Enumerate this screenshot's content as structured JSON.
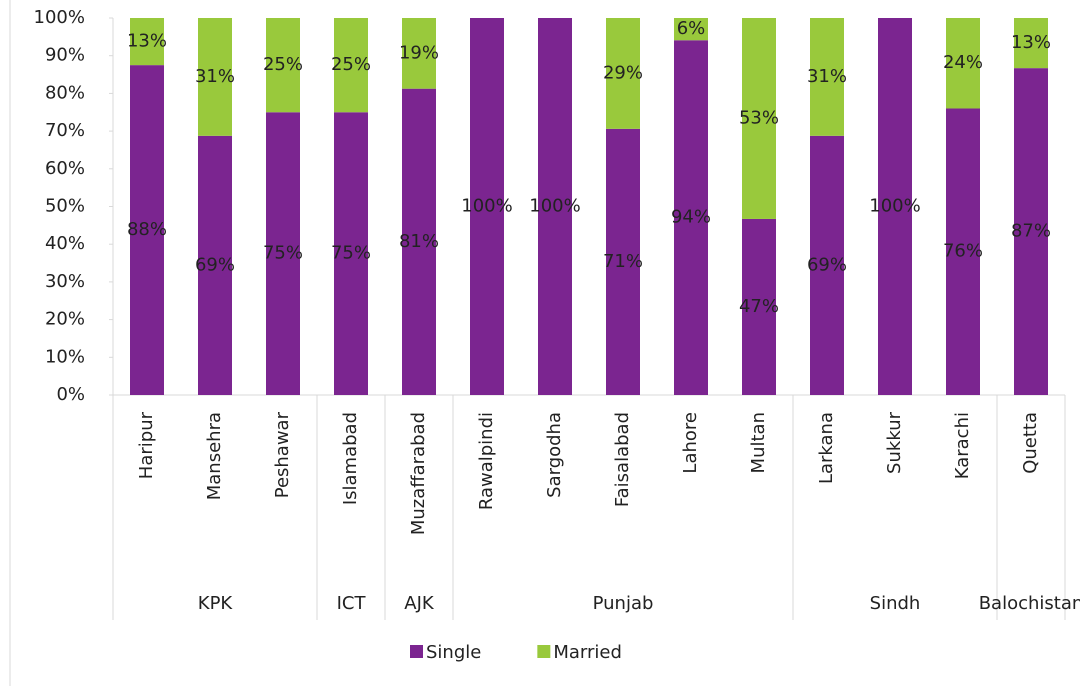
{
  "chart_data": {
    "type": "stacked_bar",
    "groups": [
      {
        "label": "KPK",
        "categories": [
          "Haripur",
          "Mansehra",
          "Peshawar"
        ]
      },
      {
        "label": "ICT",
        "categories": [
          "Islamabad"
        ]
      },
      {
        "label": "AJK",
        "categories": [
          "Muzaffarabad"
        ]
      },
      {
        "label": "Punjab",
        "categories": [
          "Rawalpindi",
          "Sargodha",
          "Faisalabad",
          "Lahore",
          "Multan"
        ]
      },
      {
        "label": "Sindh",
        "categories": [
          "Larkana",
          "Sukkur",
          "Karachi"
        ]
      },
      {
        "label": "Balochistan",
        "categories": [
          "Quetta"
        ]
      }
    ],
    "series": [
      {
        "name": "Single",
        "color": "#7b2590",
        "values": [
          87.5,
          68.75,
          75,
          75,
          81.25,
          100,
          100,
          70.6,
          94.1,
          46.7,
          68.75,
          100,
          76,
          86.7
        ],
        "value_labels": [
          "88%",
          "69%",
          "75%",
          "75%",
          "81%",
          "100%",
          "100%",
          "71%",
          "94%",
          "47%",
          "69%",
          "100%",
          "76%",
          "87%"
        ]
      },
      {
        "name": "Married",
        "color": "#99c93c",
        "values": [
          12.5,
          31.25,
          25,
          25,
          18.75,
          0,
          0,
          29.4,
          5.9,
          53.3,
          31.25,
          0,
          24,
          13.3
        ],
        "value_labels": [
          "13%",
          "31%",
          "25%",
          "25%",
          "19%",
          null,
          null,
          "29%",
          "6%",
          "53%",
          "31%",
          null,
          "24%",
          "13%"
        ]
      }
    ],
    "ylim": [
      0,
      100
    ],
    "yticks": [
      {
        "value": 0,
        "label": "0%"
      },
      {
        "value": 10,
        "label": "10%"
      },
      {
        "value": 20,
        "label": "20%"
      },
      {
        "value": 30,
        "label": "30%"
      },
      {
        "value": 40,
        "label": "40%"
      },
      {
        "value": 50,
        "label": "50%"
      },
      {
        "value": 60,
        "label": "60%"
      },
      {
        "value": 70,
        "label": "70%"
      },
      {
        "value": 80,
        "label": "80%"
      },
      {
        "value": 90,
        "label": "90%"
      },
      {
        "value": 100,
        "label": "100%"
      }
    ],
    "legend": "bottom"
  }
}
